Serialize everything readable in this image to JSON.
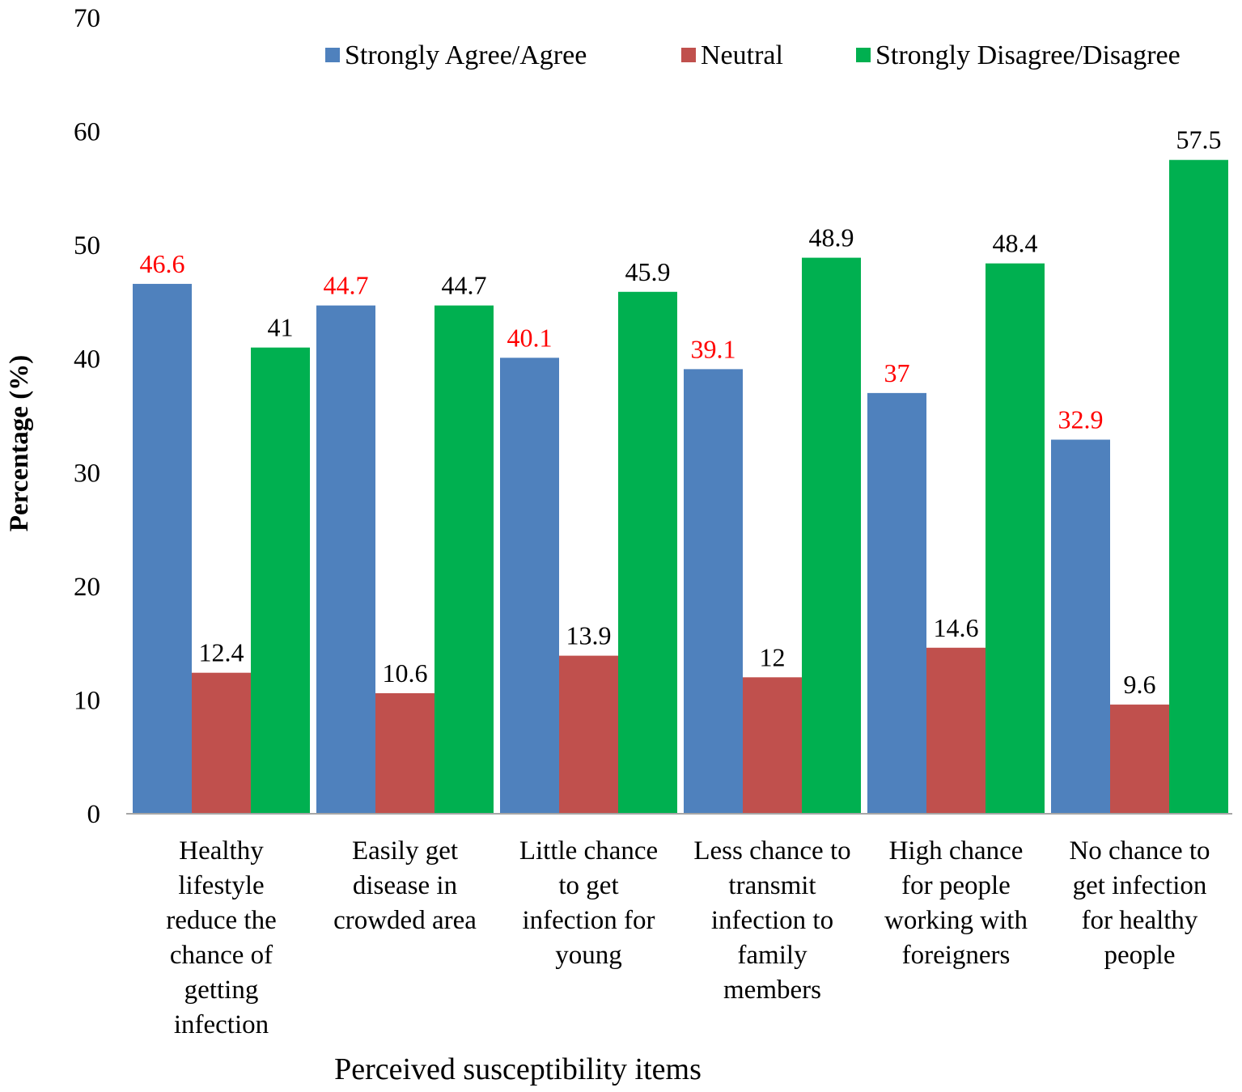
{
  "chart_data": {
    "type": "bar",
    "title": "",
    "xlabel": "Perceived susceptibility items",
    "ylabel": "Percentage (%)",
    "ylim": [
      0,
      70
    ],
    "yticks": [
      0,
      10,
      20,
      30,
      40,
      50,
      60,
      70
    ],
    "grid": false,
    "legend_position": "top",
    "categories": [
      "Healthy lifestyle reduce the chance of getting infection",
      "Easily get disease in crowded area",
      "Little chance to get infection for young",
      "Less chance to transmit infection to family members",
      "High chance for people working  with foreigners",
      "No chance to get infection for healthy people"
    ],
    "category_lines": [
      [
        "Healthy",
        "lifestyle",
        "reduce the",
        "chance of",
        "getting",
        "infection"
      ],
      [
        "Easily get",
        "disease in",
        "crowded area"
      ],
      [
        "Little chance",
        "to get",
        "infection for",
        "young"
      ],
      [
        "Less chance to",
        "transmit",
        "infection to",
        "family",
        "members"
      ],
      [
        "High chance",
        "for people",
        "working  with",
        "foreigners"
      ],
      [
        "No chance to",
        "get infection",
        "for healthy",
        "people"
      ]
    ],
    "series": [
      {
        "name": "Strongly Agree/Agree",
        "color": "#4f81bd",
        "label_color": "#ff0000",
        "values": [
          46.6,
          44.7,
          40.1,
          39.1,
          37,
          32.9
        ],
        "labels": [
          "46.6",
          "44.7",
          "40.1",
          "39.1",
          "37",
          "32.9"
        ]
      },
      {
        "name": "Neutral",
        "color": "#c0504d",
        "label_color": "#000000",
        "values": [
          12.4,
          10.6,
          13.9,
          12,
          14.6,
          9.6
        ],
        "labels": [
          "12.4",
          "10.6",
          "13.9",
          "12",
          "14.6",
          "9.6"
        ]
      },
      {
        "name": "Strongly Disagree/Disagree",
        "color": "#00b050",
        "label_color": "#000000",
        "values": [
          41,
          44.7,
          45.9,
          48.9,
          48.4,
          57.5
        ],
        "labels": [
          "41",
          "44.7",
          "45.9",
          "48.9",
          "48.4",
          "57.5"
        ]
      }
    ]
  }
}
